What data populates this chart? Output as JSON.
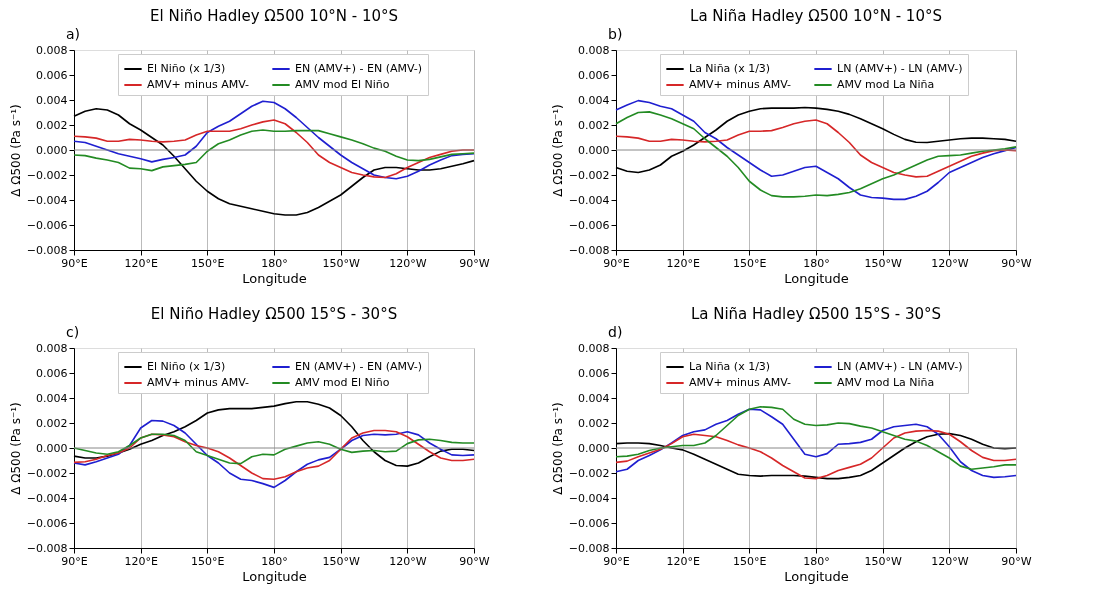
{
  "chart_data": [
    {
      "type": "line",
      "title": "El Niño Hadley Ω500 10°N - 10°S",
      "annotations": [
        "a)"
      ],
      "xlabel": "Longitude",
      "ylabel": "Δ Ω500 (Pa s⁻¹)",
      "grid": "x",
      "legend": "top",
      "line_style": "solid",
      "marker": "none",
      "xlim": [
        90,
        270
      ],
      "xticks": [
        {
          "value": 90,
          "label": "90°E"
        },
        {
          "value": 120,
          "label": "120°E"
        },
        {
          "value": 150,
          "label": "150°E"
        },
        {
          "value": 180,
          "label": "180°"
        },
        {
          "value": 210,
          "label": "150°W"
        },
        {
          "value": 240,
          "label": "120°W"
        },
        {
          "value": 270,
          "label": "90°W"
        }
      ],
      "ylim": [
        -0.008,
        0.008
      ],
      "yticks": [
        {
          "value": -0.008,
          "label": "−0.008"
        },
        {
          "value": -0.006,
          "label": "−0.006"
        },
        {
          "value": -0.004,
          "label": "−0.004"
        },
        {
          "value": -0.002,
          "label": "−0.002"
        },
        {
          "value": 0,
          "label": "0.000"
        },
        0.002,
        0.004,
        0.006,
        0.008
      ],
      "ref_lines": [
        {
          "axis": "y",
          "value": 0,
          "color": "#888888"
        }
      ],
      "x": [
        90,
        95,
        100,
        105,
        110,
        115,
        120,
        125,
        130,
        135,
        140,
        145,
        150,
        155,
        160,
        165,
        170,
        175,
        180,
        185,
        190,
        195,
        200,
        205,
        210,
        215,
        220,
        225,
        230,
        235,
        240,
        245,
        250,
        255,
        260,
        265,
        270
      ],
      "series": [
        {
          "name": "El Niño (x 1/3)",
          "color": "#000000",
          "values": [
            0.0027,
            0.0031,
            0.0033,
            0.0032,
            0.0028,
            0.0021,
            0.0016,
            0.001,
            0.0004,
            -0.0005,
            -0.0015,
            -0.0025,
            -0.0033,
            -0.0039,
            -0.0043,
            -0.0045,
            -0.0047,
            -0.0049,
            -0.0051,
            -0.0052,
            -0.0052,
            -0.005,
            -0.0046,
            -0.0041,
            -0.0036,
            -0.0029,
            -0.0022,
            -0.0016,
            -0.0014,
            -0.0014,
            -0.0015,
            -0.0016,
            -0.0016,
            -0.0015,
            -0.0013,
            -0.0011,
            -0.00085
          ]
        },
        {
          "name": "EN (AMV+) - EN (AMV-)",
          "color": "#1f1fd0",
          "values": [
            0.0007,
            0.0006,
            0.0003,
            0.0,
            -0.0003,
            -0.0005,
            -0.0007,
            -0.00095,
            -0.00075,
            -0.0006,
            -0.0004,
            0.0003,
            0.0014,
            0.0019,
            0.0023,
            0.0029,
            0.0035,
            0.0039,
            0.0038,
            0.0033,
            0.0026,
            0.0018,
            0.001,
            0.0003,
            -0.0004,
            -0.001,
            -0.0015,
            -0.002,
            -0.0022,
            -0.0023,
            -0.0021,
            -0.0017,
            -0.0012,
            -0.0008,
            -0.00045,
            -0.00035,
            -0.0003
          ]
        },
        {
          "name": "AMV+ minus AMV-",
          "color": "#d62728",
          "values": [
            0.0011,
            0.00105,
            0.00095,
            0.0007,
            0.0007,
            0.00085,
            0.0008,
            0.0007,
            0.00065,
            0.0007,
            0.0008,
            0.0012,
            0.0015,
            0.0015,
            0.0015,
            0.0017,
            0.002,
            0.00225,
            0.0024,
            0.0021,
            0.0014,
            0.0006,
            -0.0004,
            -0.001,
            -0.0014,
            -0.0018,
            -0.002,
            -0.00215,
            -0.0022,
            -0.0019,
            -0.0014,
            -0.001,
            -0.0006,
            -0.00035,
            -0.0001,
            0.0,
            0.0
          ]
        },
        {
          "name": "AMV mod El Niño",
          "color": "#238b23",
          "values": [
            -0.0004,
            -0.00045,
            -0.00065,
            -0.0008,
            -0.001,
            -0.00145,
            -0.0015,
            -0.00165,
            -0.00135,
            -0.00125,
            -0.00115,
            -0.001,
            -0.0001,
            0.0005,
            0.0008,
            0.0012,
            0.0015,
            0.0016,
            0.0015,
            0.0015,
            0.00155,
            0.00155,
            0.00155,
            0.0013,
            0.00105,
            0.0008,
            0.0005,
            0.00015,
            -0.0001,
            -0.0005,
            -0.0008,
            -0.00085,
            -0.00075,
            -0.00055,
            -0.00035,
            -0.0003,
            -0.00025
          ]
        }
      ]
    },
    {
      "type": "line",
      "title": "La Niña Hadley Ω500 10°N - 10°S",
      "annotations": [
        "b)"
      ],
      "xlabel": "Longitude",
      "ylabel": "Δ Ω500 (Pa s⁻¹)",
      "grid": "x",
      "legend": "top",
      "line_style": "solid",
      "marker": "none",
      "xlim": [
        90,
        270
      ],
      "xticks": [
        {
          "value": 90,
          "label": "90°E"
        },
        {
          "value": 120,
          "label": "120°E"
        },
        {
          "value": 150,
          "label": "150°E"
        },
        {
          "value": 180,
          "label": "180°"
        },
        {
          "value": 210,
          "label": "150°W"
        },
        {
          "value": 240,
          "label": "120°W"
        },
        {
          "value": 270,
          "label": "90°W"
        }
      ],
      "ylim": [
        -0.008,
        0.008
      ],
      "yticks": [
        {
          "value": -0.008,
          "label": "−0.008"
        },
        {
          "value": -0.006,
          "label": "−0.006"
        },
        {
          "value": -0.004,
          "label": "−0.004"
        },
        {
          "value": -0.002,
          "label": "−0.002"
        },
        {
          "value": 0,
          "label": "0.000"
        },
        0.002,
        0.004,
        0.006,
        0.008
      ],
      "ref_lines": [
        {
          "axis": "y",
          "value": 0,
          "color": "#888888"
        }
      ],
      "x": [
        90,
        95,
        100,
        105,
        110,
        115,
        120,
        125,
        130,
        135,
        140,
        145,
        150,
        155,
        160,
        165,
        170,
        175,
        180,
        185,
        190,
        195,
        200,
        205,
        210,
        215,
        220,
        225,
        230,
        235,
        240,
        245,
        250,
        255,
        260,
        265,
        270
      ],
      "series": [
        {
          "name": "La Niña (x 1/3)",
          "color": "#000000",
          "values": [
            -0.0014,
            -0.0017,
            -0.0018,
            -0.0016,
            -0.0012,
            -0.0005,
            -0.0001,
            0.0004,
            0.001,
            0.0016,
            0.0023,
            0.0028,
            0.0031,
            0.0033,
            0.00335,
            0.00335,
            0.00335,
            0.0034,
            0.00335,
            0.00325,
            0.0031,
            0.00285,
            0.0025,
            0.0021,
            0.0017,
            0.00125,
            0.00085,
            0.00062,
            0.0006,
            0.0007,
            0.0008,
            0.0009,
            0.00095,
            0.00095,
            0.0009,
            0.00085,
            0.0007
          ]
        },
        {
          "name": "LN (AMV+) - LN (AMV-)",
          "color": "#1f1fd0",
          "values": [
            0.0032,
            0.0036,
            0.00395,
            0.0038,
            0.0035,
            0.0033,
            0.0028,
            0.0023,
            0.0014,
            0.0009,
            0.0002,
            -0.0004,
            -0.001,
            -0.0016,
            -0.0021,
            -0.002,
            -0.0017,
            -0.0014,
            -0.0013,
            -0.0018,
            -0.0023,
            -0.003,
            -0.0036,
            -0.0038,
            -0.00385,
            -0.00395,
            -0.00395,
            -0.0037,
            -0.0033,
            -0.0026,
            -0.0018,
            -0.0014,
            -0.001,
            -0.0006,
            -0.0003,
            -5e-05,
            0.0002
          ]
        },
        {
          "name": "AMV+ minus AMV-",
          "color": "#d62728",
          "values": [
            0.0011,
            0.00105,
            0.00095,
            0.0007,
            0.0007,
            0.00085,
            0.0008,
            0.0007,
            0.00065,
            0.0007,
            0.0008,
            0.0012,
            0.0015,
            0.0015,
            0.00155,
            0.0018,
            0.0021,
            0.0023,
            0.0024,
            0.0021,
            0.0014,
            0.0006,
            -0.0004,
            -0.001,
            -0.0014,
            -0.0018,
            -0.002,
            -0.00215,
            -0.0021,
            -0.0017,
            -0.0013,
            -0.0009,
            -0.0005,
            -0.00025,
            -5e-05,
            0.0,
            -5e-05
          ]
        },
        {
          "name": "AMV mod La Niña",
          "color": "#238b23",
          "values": [
            0.0021,
            0.0026,
            0.003,
            0.00305,
            0.0028,
            0.0025,
            0.0021,
            0.0017,
            0.0009,
            0.0002,
            -0.0005,
            -0.0014,
            -0.0025,
            -0.0032,
            -0.00365,
            -0.00375,
            -0.00375,
            -0.0037,
            -0.0036,
            -0.00365,
            -0.00355,
            -0.0034,
            -0.0031,
            -0.0027,
            -0.0023,
            -0.002,
            -0.0016,
            -0.0012,
            -0.0008,
            -0.0005,
            -0.00045,
            -0.0004,
            -0.00025,
            -0.0001,
            0.0,
            0.0001,
            0.00025
          ]
        }
      ]
    },
    {
      "type": "line",
      "title": "El Niño Hadley Ω500 15°S - 30°S",
      "annotations": [
        "c)"
      ],
      "xlabel": "Longitude",
      "ylabel": "Δ Ω500 (Pa s⁻¹)",
      "grid": "x",
      "legend": "top",
      "line_style": "solid",
      "marker": "none",
      "xlim": [
        90,
        270
      ],
      "xticks": [
        {
          "value": 90,
          "label": "90°E"
        },
        {
          "value": 120,
          "label": "120°E"
        },
        {
          "value": 150,
          "label": "150°E"
        },
        {
          "value": 180,
          "label": "180°"
        },
        {
          "value": 210,
          "label": "150°W"
        },
        {
          "value": 240,
          "label": "120°W"
        },
        {
          "value": 270,
          "label": "90°W"
        }
      ],
      "ylim": [
        -0.008,
        0.008
      ],
      "yticks": [
        {
          "value": -0.008,
          "label": "−0.008"
        },
        {
          "value": -0.006,
          "label": "−0.006"
        },
        {
          "value": -0.004,
          "label": "−0.004"
        },
        {
          "value": -0.002,
          "label": "−0.002"
        },
        {
          "value": 0,
          "label": "0.000"
        },
        0.002,
        0.004,
        0.006,
        0.008
      ],
      "ref_lines": [
        {
          "axis": "y",
          "value": 0,
          "color": "#888888"
        }
      ],
      "x": [
        90,
        95,
        100,
        105,
        110,
        115,
        120,
        125,
        130,
        135,
        140,
        145,
        150,
        155,
        160,
        165,
        170,
        175,
        180,
        185,
        190,
        195,
        200,
        205,
        210,
        215,
        220,
        225,
        230,
        235,
        240,
        245,
        250,
        255,
        260,
        265,
        270
      ],
      "series": [
        {
          "name": "El Niño (x 1/3)",
          "color": "#000000",
          "values": [
            -0.00065,
            -0.0008,
            -0.0008,
            -0.00065,
            -0.0004,
            -0.0001,
            0.0003,
            0.0006,
            0.001,
            0.0013,
            0.0017,
            0.0022,
            0.0028,
            0.00305,
            0.00315,
            0.00315,
            0.00315,
            0.00325,
            0.00335,
            0.00355,
            0.0037,
            0.0037,
            0.0035,
            0.0032,
            0.0026,
            0.0017,
            0.0006,
            -0.0003,
            -0.001,
            -0.0014,
            -0.00145,
            -0.0012,
            -0.0007,
            -0.00025,
            -0.0001,
            -0.0001,
            -0.0002
          ]
        },
        {
          "name": "EN (AMV+) - EN (AMV-)",
          "color": "#1f1fd0",
          "values": [
            -0.0012,
            -0.00135,
            -0.0011,
            -0.0008,
            -0.0005,
            0.0002,
            0.0016,
            0.0022,
            0.00215,
            0.0018,
            0.0012,
            0.0003,
            -0.0006,
            -0.0012,
            -0.002,
            -0.0025,
            -0.0026,
            -0.00285,
            -0.00315,
            -0.0026,
            -0.0019,
            -0.0013,
            -0.00095,
            -0.00075,
            -0.0001,
            0.0006,
            0.001,
            0.0011,
            0.00105,
            0.0011,
            0.0013,
            0.00105,
            0.0004,
            -0.0001,
            -0.00055,
            -0.0006,
            -0.00055
          ]
        },
        {
          "name": "AMV+ minus AMV-",
          "color": "#d62728",
          "values": [
            -0.00115,
            -0.0011,
            -0.0009,
            -0.0006,
            -0.0004,
            0.0,
            0.0008,
            0.0011,
            0.00105,
            0.0009,
            0.0005,
            0.0002,
            0.0,
            -0.0003,
            -0.0008,
            -0.0014,
            -0.002,
            -0.00245,
            -0.0025,
            -0.0023,
            -0.0019,
            -0.0016,
            -0.00145,
            -0.001,
            -0.0001,
            0.0008,
            0.0012,
            0.0014,
            0.0014,
            0.0013,
            0.0009,
            0.0003,
            -0.0003,
            -0.0008,
            -0.001,
            -0.001,
            -0.0009
          ]
        },
        {
          "name": "AMV mod El Niño",
          "color": "#238b23",
          "values": [
            0.0,
            -0.0002,
            -0.0004,
            -0.0005,
            -0.0003,
            0.0002,
            0.0008,
            0.0011,
            0.0011,
            0.001,
            0.0006,
            -0.0003,
            -0.0006,
            -0.0009,
            -0.0012,
            -0.00125,
            -0.0007,
            -0.0005,
            -0.00055,
            -0.0001,
            0.00015,
            0.0004,
            0.0005,
            0.0003,
            -0.0001,
            -0.00035,
            -0.00025,
            -0.0002,
            -0.0003,
            -0.00025,
            0.00035,
            0.00065,
            0.0007,
            0.0006,
            0.00045,
            0.0004,
            0.0004
          ]
        }
      ]
    },
    {
      "type": "line",
      "title": "La Niña Hadley Ω500 15°S - 30°S",
      "annotations": [
        "d)"
      ],
      "xlabel": "Longitude",
      "ylabel": "Δ Ω500 (Pa s⁻¹)",
      "grid": "x",
      "legend": "top",
      "line_style": "solid",
      "marker": "none",
      "xlim": [
        90,
        270
      ],
      "xticks": [
        {
          "value": 90,
          "label": "90°E"
        },
        {
          "value": 120,
          "label": "120°E"
        },
        {
          "value": 150,
          "label": "150°E"
        },
        {
          "value": 180,
          "label": "180°"
        },
        {
          "value": 210,
          "label": "150°W"
        },
        {
          "value": 240,
          "label": "120°W"
        },
        {
          "value": 270,
          "label": "90°W"
        }
      ],
      "ylim": [
        -0.008,
        0.008
      ],
      "yticks": [
        {
          "value": -0.008,
          "label": "−0.008"
        },
        {
          "value": -0.006,
          "label": "−0.006"
        },
        {
          "value": -0.004,
          "label": "−0.004"
        },
        {
          "value": -0.002,
          "label": "−0.002"
        },
        {
          "value": 0,
          "label": "0.000"
        },
        0.002,
        0.004,
        0.006,
        0.008
      ],
      "ref_lines": [
        {
          "axis": "y",
          "value": 0,
          "color": "#888888"
        }
      ],
      "x": [
        90,
        95,
        100,
        105,
        110,
        115,
        120,
        125,
        130,
        135,
        140,
        145,
        150,
        155,
        160,
        165,
        170,
        175,
        180,
        185,
        190,
        195,
        200,
        205,
        210,
        215,
        220,
        225,
        230,
        235,
        240,
        245,
        250,
        255,
        260,
        265,
        270
      ],
      "series": [
        {
          "name": "La Niña (x 1/3)",
          "color": "#000000",
          "values": [
            0.00035,
            0.0004,
            0.0004,
            0.00035,
            0.0002,
            0.0,
            -0.00015,
            -0.0005,
            -0.0009,
            -0.0013,
            -0.0017,
            -0.0021,
            -0.0022,
            -0.00225,
            -0.0022,
            -0.0022,
            -0.0022,
            -0.00225,
            -0.00235,
            -0.00245,
            -0.00245,
            -0.00235,
            -0.0022,
            -0.0018,
            -0.0012,
            -0.0006,
            0.0,
            0.0005,
            0.0009,
            0.0011,
            0.00115,
            0.001,
            0.0007,
            0.0003,
            0.0,
            -5e-05,
            0.0
          ]
        },
        {
          "name": "LN (AMV+) - LN (AMV-)",
          "color": "#1f1fd0",
          "values": [
            -0.0019,
            -0.0017,
            -0.001,
            -0.0006,
            -0.00015,
            0.0004,
            0.001,
            0.0013,
            0.00145,
            0.0019,
            0.0022,
            0.0027,
            0.0031,
            0.00305,
            0.0025,
            0.0019,
            0.0007,
            -0.0005,
            -0.0007,
            -0.00045,
            0.0003,
            0.00035,
            0.00045,
            0.0007,
            0.0014,
            0.0017,
            0.0018,
            0.0019,
            0.0017,
            0.0011,
            0.0001,
            -0.0011,
            -0.0018,
            -0.0022,
            -0.00235,
            -0.0023,
            -0.0022
          ]
        },
        {
          "name": "AMV+ minus AMV-",
          "color": "#d62728",
          "values": [
            -0.00115,
            -0.00105,
            -0.0007,
            -0.0004,
            -0.0001,
            0.00035,
            0.0009,
            0.0011,
            0.001,
            0.0009,
            0.0006,
            0.00025,
            0.0,
            -0.0003,
            -0.0008,
            -0.0014,
            -0.0019,
            -0.0024,
            -0.00245,
            -0.0022,
            -0.0018,
            -0.00155,
            -0.0013,
            -0.0008,
            0.0,
            0.0008,
            0.0012,
            0.00135,
            0.0014,
            0.00135,
            0.0011,
            0.0005,
            -0.0002,
            -0.00075,
            -0.001,
            -0.001,
            -0.0009
          ]
        },
        {
          "name": "AMV mod La Niña",
          "color": "#238b23",
          "values": [
            -0.0007,
            -0.00065,
            -0.0005,
            -0.0002,
            0.0,
            0.0001,
            0.0002,
            0.0002,
            0.0004,
            0.001,
            0.0018,
            0.0026,
            0.0031,
            0.0033,
            0.00325,
            0.0031,
            0.0023,
            0.0019,
            0.0018,
            0.00185,
            0.002,
            0.00195,
            0.00175,
            0.0016,
            0.0013,
            0.001,
            0.0007,
            0.00055,
            0.0002,
            -0.0003,
            -0.0008,
            -0.00145,
            -0.0017,
            -0.0016,
            -0.0015,
            -0.00135,
            -0.00135
          ]
        }
      ]
    }
  ]
}
